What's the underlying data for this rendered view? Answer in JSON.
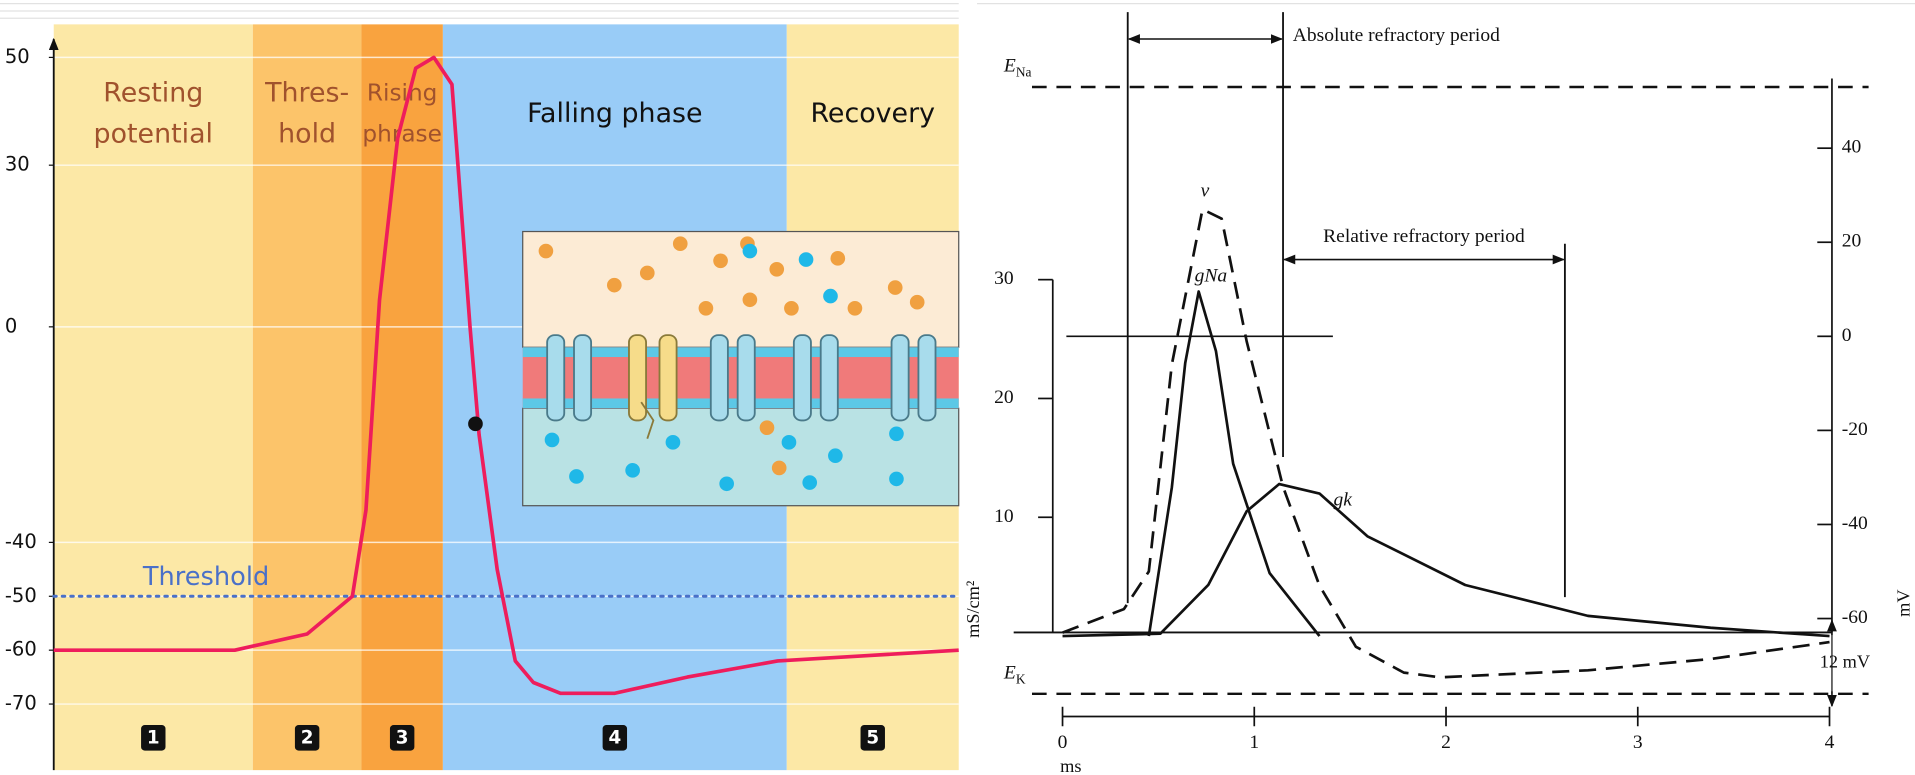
{
  "chart_data": [
    {
      "type": "line",
      "xlim": [
        0,
        10
      ],
      "ylim": [
        -80,
        55
      ],
      "yticks": [
        50,
        30,
        0,
        -40,
        -50,
        -60,
        -70
      ],
      "grid": true,
      "phases": [
        {
          "label": [
            "Resting",
            "potential"
          ],
          "number": "1",
          "start": 0,
          "end": 2.2,
          "color": "#fce8a6",
          "label_color": "#a0522d"
        },
        {
          "label": [
            "Thres-",
            "hold"
          ],
          "number": "2",
          "start": 2.2,
          "end": 3.4,
          "color": "#fcc46a",
          "label_color": "#a0522d"
        },
        {
          "label": [
            "Rising",
            "phrase"
          ],
          "number": "3",
          "start": 3.4,
          "end": 4.3,
          "color": "#f9a33f",
          "label_color": "#a0522d"
        },
        {
          "label": [
            "Falling phase"
          ],
          "number": "4",
          "start": 4.3,
          "end": 8.1,
          "color": "#99ccf7",
          "label_color": "#111111"
        },
        {
          "label": [
            "Recovery"
          ],
          "number": "5",
          "start": 8.1,
          "end": 10,
          "color": "#fce8a6",
          "label_color": "#111111"
        }
      ],
      "x": [
        0,
        2.0,
        2.8,
        3.3,
        3.45,
        3.6,
        3.8,
        4.0,
        4.2,
        4.4,
        4.6,
        4.7,
        4.9,
        5.1,
        5.3,
        5.6,
        6.2,
        7.0,
        8.0,
        9.0,
        10
      ],
      "values": [
        -60,
        -60,
        -57,
        -50,
        -34,
        5,
        35,
        48,
        50,
        45,
        0,
        -20,
        -45,
        -62,
        -66,
        -68,
        -68,
        -65,
        -62,
        -61,
        -60
      ],
      "color": "#ee1d5c",
      "threshold": {
        "label": "Threshold",
        "value": -50,
        "color": "#4a70c8"
      },
      "marker": {
        "x": 4.66,
        "value": -18
      }
    },
    {
      "type": "line",
      "xlim": [
        0,
        4
      ],
      "xticks": [
        0,
        1,
        2,
        3,
        4
      ],
      "x_label": "ms",
      "ylim": [
        0,
        30
      ],
      "yticks": [
        10,
        20,
        30
      ],
      "y_label": "mS/cm²",
      "y2lim": [
        -80,
        60
      ],
      "y2ticks": [
        40,
        20,
        0,
        -20,
        -40,
        -60
      ],
      "y2_label": "mV",
      "series": [
        {
          "name": "v",
          "axis": "y2",
          "dash": true,
          "color": "#111111",
          "x": [
            0,
            0.32,
            0.45,
            0.57,
            0.73,
            0.83,
            0.96,
            1.15,
            1.34,
            1.53,
            1.78,
            1.97,
            2.74,
            3.38,
            4
          ],
          "values": [
            -63,
            -58,
            -50,
            -6,
            27,
            25,
            -1,
            -32,
            -53,
            -66,
            -71.5,
            -72.5,
            -71,
            -68.6,
            -65
          ]
        },
        {
          "name": "gNa",
          "axis": "y",
          "dash": false,
          "color": "#111111",
          "x": [
            0.45,
            0.57,
            0.64,
            0.71,
            0.8,
            0.89,
            1.08,
            1.34
          ],
          "values": [
            0,
            12.5,
            23,
            29,
            24,
            14.5,
            5.3,
            0
          ]
        },
        {
          "name": "gk",
          "axis": "y",
          "dash": false,
          "color": "#111111",
          "x": [
            0,
            0.51,
            0.76,
            0.96,
            1.13,
            1.34,
            1.59,
            2.1,
            2.74,
            3.38,
            4
          ],
          "values": [
            0,
            0.2,
            4.3,
            10.5,
            12.8,
            12,
            8.4,
            4.3,
            1.7,
            0.7,
            0
          ]
        }
      ],
      "equilibrium": [
        {
          "symbol": "E",
          "subscript": "Na",
          "value": 53
        },
        {
          "symbol": "E",
          "subscript": "K",
          "value": -76
        }
      ],
      "periods": [
        {
          "label": "Absolute refractory period",
          "start": 0.34,
          "end": 1.15
        },
        {
          "label": "Relative refractory period",
          "start": 1.15,
          "end": 2.62
        }
      ],
      "reference_line": {
        "axis": "y2",
        "value": 0,
        "start": 0.02,
        "end": 1.41
      },
      "gap_label": "12 mV"
    }
  ]
}
